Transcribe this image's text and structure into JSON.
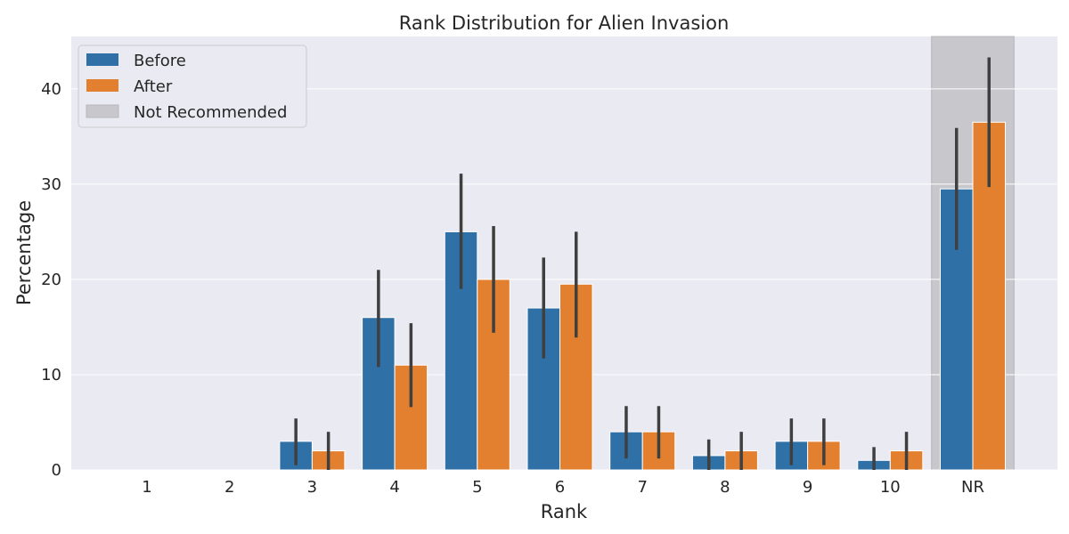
{
  "chart_data": {
    "type": "bar",
    "title": "Rank Distribution for Alien Invasion",
    "xlabel": "Rank",
    "ylabel": "Percentage",
    "categories": [
      "1",
      "2",
      "3",
      "4",
      "5",
      "6",
      "7",
      "8",
      "9",
      "10",
      "NR"
    ],
    "ylim": [
      0,
      45.5
    ],
    "yticks": [
      0,
      10,
      20,
      30,
      40
    ],
    "grid": true,
    "legend_position": "top-left",
    "highlight": {
      "label": "Not Recommended",
      "category": "NR",
      "color": "#c8c7cc"
    },
    "series": [
      {
        "name": "Before",
        "color": "#2f71a6",
        "values": [
          0,
          0,
          3.0,
          16.0,
          25.0,
          17.0,
          4.0,
          1.5,
          3.0,
          1.0,
          29.5
        ],
        "ci_low": [
          0,
          0,
          0.5,
          10.8,
          19.0,
          11.7,
          1.2,
          0,
          0.5,
          0,
          23.1
        ],
        "ci_high": [
          0,
          0,
          5.4,
          21.0,
          31.1,
          22.3,
          6.7,
          3.2,
          5.4,
          2.4,
          35.9
        ]
      },
      {
        "name": "After",
        "color": "#e2802f",
        "values": [
          0,
          0,
          2.0,
          11.0,
          20.0,
          19.5,
          4.0,
          2.0,
          3.0,
          2.0,
          36.5
        ],
        "ci_low": [
          0,
          0,
          0,
          6.6,
          14.4,
          13.9,
          1.2,
          0,
          0.5,
          0,
          29.7
        ],
        "ci_high": [
          0,
          0,
          4.0,
          15.4,
          25.6,
          25.0,
          6.7,
          4.0,
          5.4,
          4.0,
          43.3
        ]
      }
    ]
  }
}
